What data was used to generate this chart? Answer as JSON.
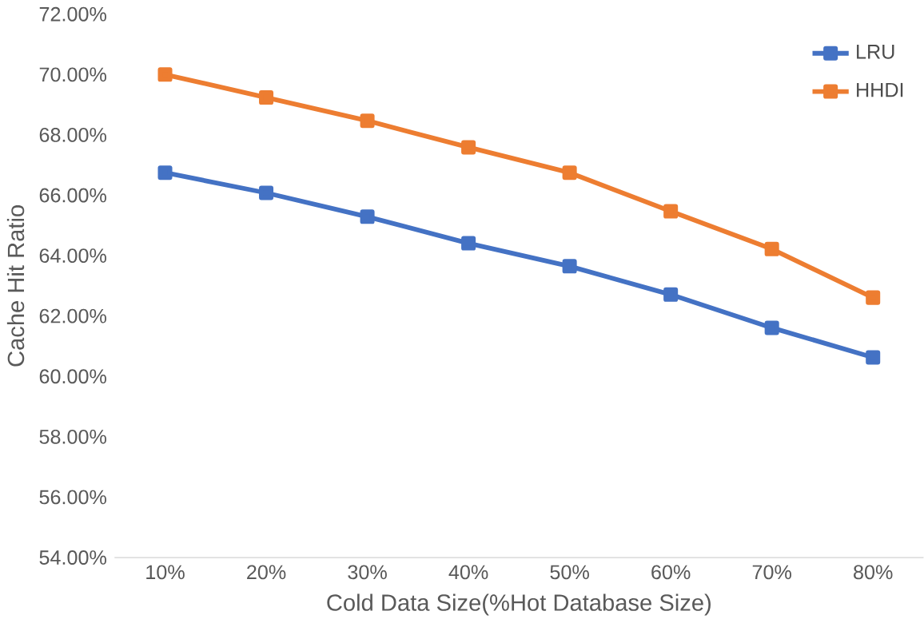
{
  "chart_data": {
    "type": "line",
    "xlabel": "Cold Data Size(%Hot Database Size)",
    "ylabel": "Cache Hit Ratio",
    "categories": [
      "10%",
      "20%",
      "30%",
      "40%",
      "50%",
      "60%",
      "70%",
      "80%"
    ],
    "series": [
      {
        "name": "LRU",
        "color": "#4472c4",
        "values": [
          66.75,
          66.08,
          65.29,
          64.41,
          63.65,
          62.71,
          61.61,
          60.63
        ]
      },
      {
        "name": "HHDI",
        "color": "#ed7d31",
        "values": [
          70.0,
          69.24,
          68.47,
          67.59,
          66.75,
          65.47,
          64.22,
          62.61
        ]
      }
    ],
    "ylim": [
      54,
      72
    ],
    "yticks": [
      {
        "value": 54,
        "label": "54.00%"
      },
      {
        "value": 56,
        "label": "56.00%"
      },
      {
        "value": 58,
        "label": "58.00%"
      },
      {
        "value": 60,
        "label": "60.00%"
      },
      {
        "value": 62,
        "label": "62.00%"
      },
      {
        "value": 64,
        "label": "64.00%"
      },
      {
        "value": 66,
        "label": "66.00%"
      },
      {
        "value": 68,
        "label": "68.00%"
      },
      {
        "value": 70,
        "label": "70.00%"
      },
      {
        "value": 72,
        "label": "72.00%"
      }
    ],
    "grid": false,
    "legend": "top right",
    "marker": "square",
    "line_style": "solid"
  }
}
